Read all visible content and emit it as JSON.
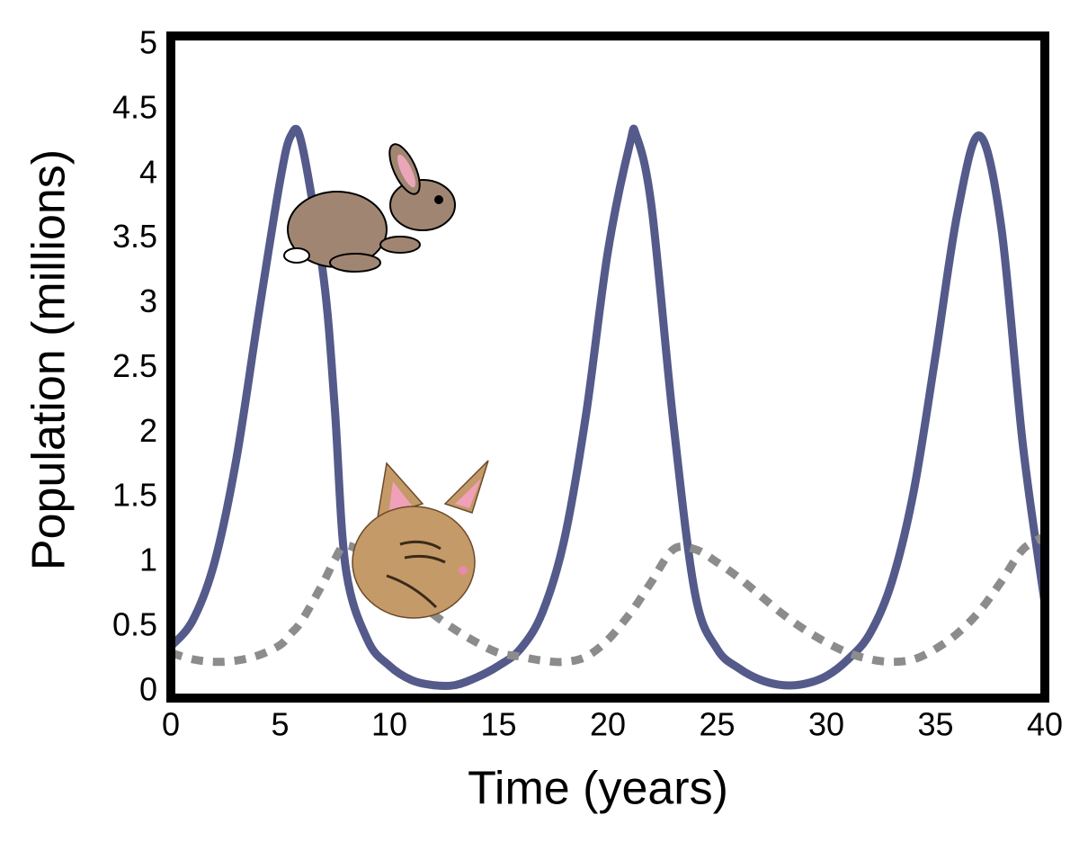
{
  "chart_data": {
    "type": "line",
    "xlabel": "Time (years)",
    "ylabel": "Population (millions)",
    "x": [
      0,
      1,
      2,
      3,
      4,
      5,
      5.5,
      6,
      7,
      7.5,
      8,
      9,
      10,
      11,
      12,
      13,
      14,
      15,
      16,
      17,
      18,
      19,
      20,
      21,
      21.3,
      22,
      23,
      24,
      25,
      26,
      27,
      28,
      29,
      30,
      31,
      32,
      33,
      34,
      35,
      36,
      37,
      38,
      39,
      40
    ],
    "series": [
      {
        "color": "#545a8a",
        "style": "solid",
        "values": [
          0.35,
          0.55,
          1.0,
          1.8,
          2.9,
          3.95,
          4.3,
          4.23,
          3.19,
          2.2,
          0.96,
          0.4,
          0.2,
          0.09,
          0.05,
          0.05,
          0.11,
          0.2,
          0.33,
          0.61,
          1.17,
          2.14,
          3.4,
          4.23,
          4.3,
          3.75,
          2.08,
          0.75,
          0.33,
          0.18,
          0.09,
          0.05,
          0.06,
          0.12,
          0.25,
          0.45,
          0.85,
          1.55,
          2.6,
          3.7,
          4.3,
          3.6,
          1.9,
          0.68
        ]
      },
      {
        "color": "#8c8c8c",
        "style": "dotted",
        "values": [
          0.3,
          0.25,
          0.23,
          0.24,
          0.28,
          0.36,
          0.45,
          0.55,
          0.85,
          1.02,
          1.13,
          1.05,
          0.9,
          0.75,
          0.6,
          0.48,
          0.38,
          0.3,
          0.27,
          0.24,
          0.23,
          0.27,
          0.4,
          0.6,
          0.67,
          0.85,
          1.1,
          1.1,
          1.0,
          0.88,
          0.74,
          0.6,
          0.48,
          0.38,
          0.3,
          0.25,
          0.23,
          0.25,
          0.33,
          0.45,
          0.62,
          0.85,
          1.1,
          1.2
        ]
      }
    ],
    "xlim": [
      0,
      40
    ],
    "xticks": [
      0,
      5,
      10,
      15,
      20,
      25,
      30,
      35,
      40
    ],
    "ylim": [
      -0.05,
      5.07
    ],
    "yticks": [
      0,
      0.5,
      1,
      1.5,
      2,
      2.5,
      3,
      3.5,
      4,
      4.5,
      5
    ],
    "grid": false
  }
}
